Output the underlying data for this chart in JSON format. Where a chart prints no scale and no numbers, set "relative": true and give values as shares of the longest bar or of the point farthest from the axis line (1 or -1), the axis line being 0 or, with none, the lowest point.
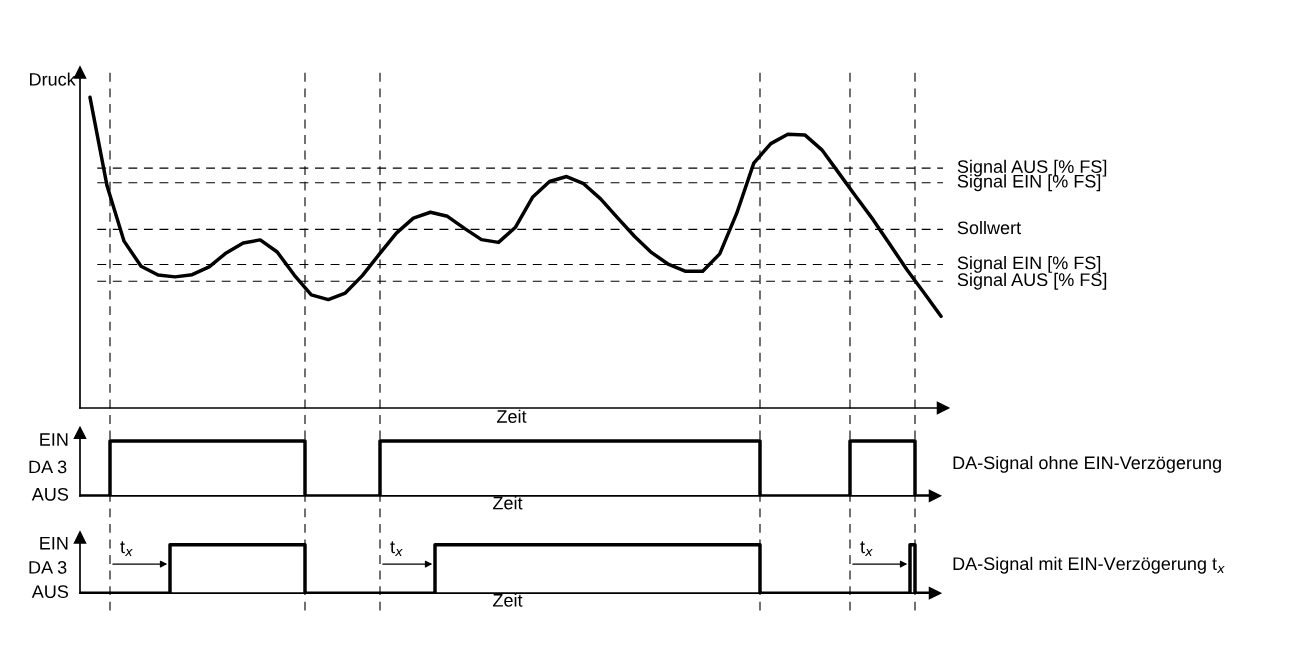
{
  "chart_data": [
    {
      "type": "line",
      "relative": true,
      "ylabel": "Druck",
      "xlabel": "Zeit",
      "color": "#000000",
      "categories": [
        null,
        null,
        null,
        null,
        null,
        null,
        null,
        null,
        null,
        null,
        null,
        null,
        null,
        null,
        null,
        null,
        null,
        null,
        null,
        null,
        null,
        null,
        null,
        null,
        null,
        null,
        null,
        null,
        null,
        null,
        null,
        null,
        null,
        null,
        null,
        null,
        null,
        null,
        null,
        null,
        null,
        null,
        null,
        null,
        null,
        null,
        null,
        null,
        null,
        null,
        null
      ],
      "values": [
        1.0,
        0.715,
        0.537,
        0.456,
        0.428,
        0.422,
        0.429,
        0.454,
        0.499,
        0.531,
        0.541,
        0.502,
        0.428,
        0.364,
        0.349,
        0.37,
        0.426,
        0.495,
        0.563,
        0.611,
        0.63,
        0.617,
        0.578,
        0.542,
        0.533,
        0.582,
        0.678,
        0.729,
        0.745,
        0.722,
        0.673,
        0.612,
        0.552,
        0.5,
        0.462,
        0.44,
        0.44,
        0.496,
        0.627,
        0.788,
        0.851,
        0.881,
        0.879,
        0.831,
        0.756,
        0.681,
        0.607,
        0.526,
        0.445,
        0.371,
        0.295
      ],
      "ref_lines": [
        {
          "axis": "y",
          "value": 0.772,
          "label": "Signal AUS [% FS]",
          "line_style": "dashed"
        },
        {
          "axis": "y",
          "value": 0.725,
          "label": "Signal EIN [% FS]",
          "line_style": "dashed"
        },
        {
          "axis": "y",
          "value": 0.575,
          "label": "Sollwert",
          "line_style": "dashed"
        },
        {
          "axis": "y",
          "value": 0.462,
          "label": "Signal EIN [% FS]",
          "line_style": "dashed"
        },
        {
          "axis": "y",
          "value": 0.408,
          "label": "Signal AUS [% FS]",
          "line_style": "dashed"
        }
      ]
    },
    {
      "type": "step",
      "relative": true,
      "xlabel": "Zeit",
      "ylabel": "DA 3",
      "color": "#000000",
      "categories": [
        null,
        null,
        null,
        null,
        null,
        null,
        null,
        null,
        null,
        null,
        null,
        null,
        null,
        null,
        null,
        null,
        null,
        null,
        null,
        null,
        null,
        null,
        null,
        null,
        null,
        null,
        null,
        null,
        null,
        null,
        null,
        null,
        null,
        null,
        null,
        null,
        null,
        null,
        null,
        null,
        null,
        null,
        null,
        null,
        null,
        null,
        null,
        null,
        null,
        null,
        null,
        null,
        null,
        null,
        null,
        null,
        null,
        null,
        null,
        null,
        null,
        null,
        null,
        null,
        null,
        null,
        null,
        null,
        null,
        null,
        null,
        null,
        null,
        null,
        null,
        null,
        null,
        null,
        null,
        null,
        null,
        null,
        null,
        null,
        null,
        null,
        null,
        null,
        null,
        null,
        null,
        null,
        null,
        null,
        null,
        null,
        null,
        null,
        null,
        null,
        null,
        null,
        null,
        null,
        null,
        null,
        null,
        null,
        null,
        null,
        null,
        null,
        null,
        null,
        null,
        null,
        null,
        null,
        null,
        null,
        null,
        null,
        null,
        null,
        null,
        null,
        null,
        null,
        null,
        null,
        null,
        null,
        null,
        null,
        null,
        null,
        null,
        null,
        null,
        null,
        null,
        null,
        null,
        null,
        null,
        null,
        null,
        null,
        null,
        null,
        null,
        null,
        null,
        null,
        null,
        null,
        null,
        null,
        null,
        null,
        null,
        null,
        null,
        null,
        null,
        null,
        null,
        null,
        null,
        null,
        null,
        null
      ],
      "values": [
        0,
        0,
        0,
        0,
        0,
        0,
        1,
        1,
        1,
        1,
        1,
        1,
        1,
        1,
        1,
        1,
        1,
        1,
        1,
        1,
        1,
        1,
        1,
        1,
        1,
        1,
        1,
        1,
        1,
        1,
        1,
        1,
        1,
        1,
        1,
        1,
        1,
        1,
        1,
        1,
        1,
        1,
        1,
        1,
        1,
        0,
        0,
        0,
        0,
        0,
        0,
        0,
        0,
        0,
        0,
        0,
        0,
        0,
        0,
        0,
        1,
        1,
        1,
        1,
        1,
        1,
        1,
        1,
        1,
        1,
        1,
        1,
        1,
        1,
        1,
        1,
        1,
        1,
        1,
        1,
        1,
        1,
        1,
        1,
        1,
        1,
        1,
        1,
        1,
        1,
        1,
        1,
        1,
        1,
        1,
        1,
        1,
        1,
        1,
        1,
        1,
        1,
        1,
        1,
        1,
        1,
        1,
        1,
        1,
        1,
        1,
        1,
        1,
        1,
        1,
        1,
        1,
        1,
        1,
        1,
        1,
        1,
        1,
        1,
        1,
        1,
        1,
        1,
        1,
        1,
        1,
        1,
        1,
        1,
        1,
        1,
        0,
        0,
        0,
        0,
        0,
        0,
        0,
        0,
        0,
        0,
        0,
        0,
        0,
        0,
        0,
        0,
        0,
        0,
        1,
        1,
        1,
        1,
        1,
        1,
        1,
        1,
        1,
        1,
        1,
        1,
        1,
        0,
        0,
        0,
        0,
        0
      ],
      "annotations": [
        "EIN",
        "AUS",
        "DA-Signal ohne EIN-Verzögerung"
      ]
    },
    {
      "type": "step",
      "relative": true,
      "xlabel": "Zeit",
      "ylabel": "DA 3",
      "color": "#000000",
      "categories": [
        null,
        null,
        null,
        null,
        null,
        null,
        null,
        null,
        null,
        null,
        null,
        null,
        null,
        null,
        null,
        null,
        null,
        null,
        null,
        null,
        null,
        null,
        null,
        null,
        null,
        null,
        null,
        null,
        null,
        null,
        null,
        null,
        null,
        null,
        null,
        null,
        null,
        null,
        null,
        null,
        null,
        null,
        null,
        null,
        null,
        null,
        null,
        null,
        null,
        null,
        null,
        null,
        null,
        null,
        null,
        null,
        null,
        null,
        null,
        null,
        null,
        null,
        null,
        null,
        null,
        null,
        null,
        null,
        null,
        null,
        null,
        null,
        null,
        null,
        null,
        null,
        null,
        null,
        null,
        null,
        null,
        null,
        null,
        null,
        null,
        null,
        null,
        null,
        null,
        null,
        null,
        null,
        null,
        null,
        null,
        null,
        null,
        null,
        null,
        null,
        null,
        null,
        null,
        null,
        null,
        null,
        null,
        null,
        null,
        null,
        null,
        null,
        null,
        null,
        null,
        null,
        null,
        null,
        null,
        null,
        null,
        null,
        null,
        null,
        null,
        null,
        null,
        null,
        null,
        null,
        null,
        null,
        null,
        null,
        null,
        null,
        null,
        null,
        null,
        null,
        null,
        null,
        null,
        null,
        null,
        null,
        null,
        null,
        null,
        null,
        null,
        null,
        null,
        null,
        null,
        null,
        null,
        null,
        null,
        null,
        null,
        null,
        null,
        null,
        null,
        null,
        null,
        null,
        null,
        null,
        null,
        null
      ],
      "values": [
        0,
        0,
        0,
        0,
        0,
        0,
        0,
        0,
        0,
        0,
        0,
        0,
        0,
        0,
        0,
        0,
        0,
        0,
        1,
        1,
        1,
        1,
        1,
        1,
        1,
        1,
        1,
        1,
        1,
        1,
        1,
        1,
        1,
        1,
        1,
        1,
        1,
        1,
        1,
        1,
        1,
        1,
        1,
        1,
        1,
        0,
        0,
        0,
        0,
        0,
        0,
        0,
        0,
        0,
        0,
        0,
        0,
        0,
        0,
        0,
        0,
        0,
        0,
        0,
        0,
        0,
        0,
        0,
        0,
        0,
        0,
        1,
        1,
        1,
        1,
        1,
        1,
        1,
        1,
        1,
        1,
        1,
        1,
        1,
        1,
        1,
        1,
        1,
        1,
        1,
        1,
        1,
        1,
        1,
        1,
        1,
        1,
        1,
        1,
        1,
        1,
        1,
        1,
        1,
        1,
        1,
        1,
        1,
        1,
        1,
        1,
        1,
        1,
        1,
        1,
        1,
        1,
        1,
        1,
        1,
        1,
        1,
        1,
        1,
        1,
        1,
        1,
        1,
        1,
        1,
        1,
        1,
        1,
        1,
        1,
        1,
        0,
        0,
        0,
        0,
        0,
        0,
        0,
        0,
        0,
        0,
        0,
        0,
        0,
        0,
        0,
        0,
        0,
        0,
        0,
        0,
        0,
        0,
        0,
        0,
        0,
        0,
        0,
        0,
        0,
        0,
        1,
        0,
        0,
        0,
        0,
        0
      ],
      "annotations": [
        "EIN",
        "AUS",
        "t$_{x}$",
        "t$_{x}$",
        "t$_{x}$",
        "DA-Signal mit EIN-Verzögerung t$_{x}$"
      ]
    }
  ]
}
